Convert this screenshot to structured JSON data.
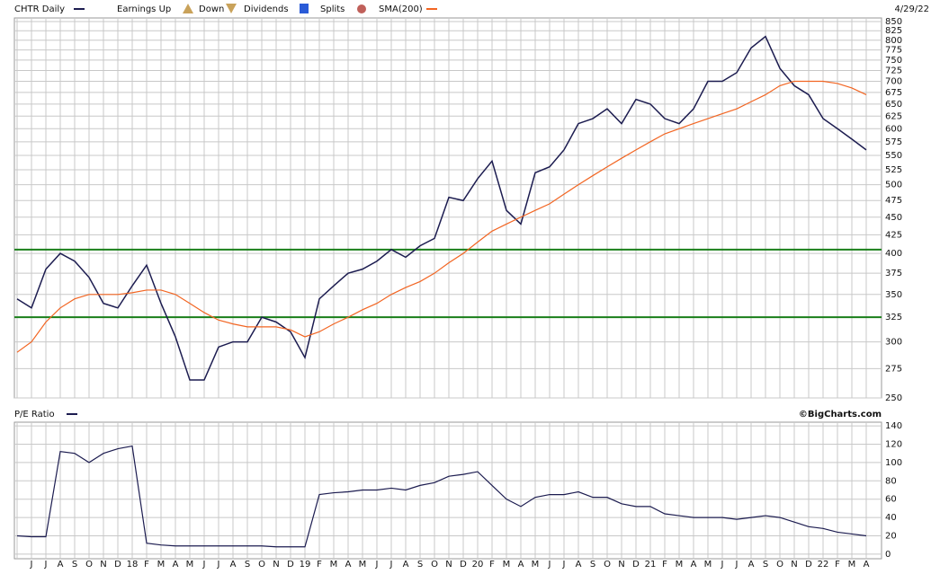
{
  "chart_data": [
    {
      "type": "line",
      "date": "4/29/22",
      "legend_extra": [
        "Earnings Up",
        "Down",
        "Dividends",
        "Splits"
      ],
      "log_scale": true,
      "grid": true,
      "ylim": [
        250,
        860
      ],
      "yticks": [
        250,
        275,
        300,
        325,
        350,
        375,
        400,
        425,
        450,
        475,
        500,
        525,
        550,
        575,
        600,
        625,
        650,
        675,
        700,
        725,
        750,
        775,
        800,
        825,
        850
      ],
      "hlines": [
        405,
        325
      ],
      "hline_color": "#1a7f1a",
      "series": [
        {
          "name": "CHTR Daily",
          "color": "#1c1c50",
          "values": [
            345,
            335,
            380,
            400,
            390,
            370,
            340,
            335,
            360,
            385,
            340,
            305,
            265,
            265,
            295,
            300,
            300,
            325,
            320,
            310,
            285,
            345,
            360,
            375,
            380,
            390,
            405,
            395,
            410,
            420,
            480,
            475,
            510,
            540,
            460,
            440,
            520,
            530,
            560,
            610,
            620,
            640,
            610,
            660,
            650,
            620,
            610,
            640,
            700,
            700,
            720,
            780,
            810,
            730,
            690,
            670,
            620,
            600,
            580,
            560
          ]
        },
        {
          "name": "SMA(200)",
          "color": "#f26522",
          "values": [
            290,
            300,
            320,
            335,
            345,
            350,
            350,
            350,
            352,
            355,
            355,
            350,
            340,
            330,
            322,
            318,
            315,
            315,
            315,
            312,
            305,
            310,
            318,
            325,
            333,
            340,
            350,
            358,
            365,
            375,
            388,
            400,
            415,
            430,
            440,
            450,
            460,
            470,
            485,
            500,
            515,
            530,
            545,
            560,
            575,
            590,
            600,
            610,
            620,
            630,
            640,
            655,
            670,
            690,
            700,
            700,
            700,
            695,
            685,
            670
          ]
        }
      ]
    },
    {
      "type": "line",
      "source": "©BigCharts.com",
      "grid": true,
      "categories": [
        null,
        "J",
        "J",
        "A",
        "S",
        "O",
        "N",
        "D",
        "18",
        "F",
        "M",
        "A",
        "M",
        "J",
        "J",
        "A",
        "S",
        "O",
        "N",
        "D",
        "19",
        "F",
        "M",
        "A",
        "M",
        "J",
        "J",
        "A",
        "S",
        "O",
        "N",
        "D",
        "20",
        "F",
        "M",
        "A",
        "M",
        "J",
        "J",
        "A",
        "S",
        "O",
        "N",
        "D",
        "21",
        "F",
        "M",
        "A",
        "M",
        "J",
        "J",
        "A",
        "S",
        "O",
        "N",
        "D",
        "22",
        "F",
        "M",
        "A"
      ],
      "ylim": [
        -5,
        144
      ],
      "yticks": [
        0,
        20,
        40,
        60,
        80,
        100,
        120,
        140
      ],
      "series": [
        {
          "name": "P/E Ratio",
          "color": "#1c1c50",
          "values": [
            20,
            19,
            19,
            112,
            110,
            100,
            110,
            115,
            118,
            12,
            10,
            9,
            9,
            9,
            9,
            9,
            9,
            9,
            8,
            8,
            8,
            65,
            67,
            68,
            70,
            70,
            72,
            70,
            75,
            78,
            85,
            87,
            90,
            75,
            60,
            52,
            62,
            65,
            65,
            68,
            62,
            62,
            55,
            52,
            52,
            44,
            42,
            40,
            40,
            40,
            38,
            40,
            42,
            40,
            35,
            30,
            28,
            24,
            22,
            20
          ]
        }
      ]
    }
  ]
}
